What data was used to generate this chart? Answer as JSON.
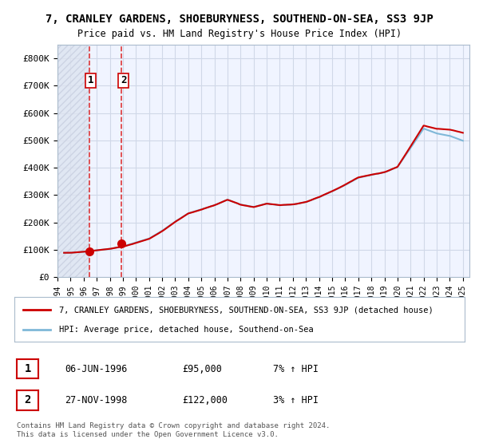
{
  "title": "7, CRANLEY GARDENS, SHOEBURYNESS, SOUTHEND-ON-SEA, SS3 9JP",
  "subtitle": "Price paid vs. HM Land Registry's House Price Index (HPI)",
  "legend_line1": "7, CRANLEY GARDENS, SHOEBURYNESS, SOUTHEND-ON-SEA, SS3 9JP (detached house)",
  "legend_line2": "HPI: Average price, detached house, Southend-on-Sea",
  "table_row1": [
    "1",
    "06-JUN-1996",
    "£95,000",
    "7% ↑ HPI"
  ],
  "table_row2": [
    "2",
    "27-NOV-1998",
    "£122,000",
    "3% ↑ HPI"
  ],
  "footnote": "Contains HM Land Registry data © Crown copyright and database right 2024.\nThis data is licensed under the Open Government Licence v3.0.",
  "xmin": 1994.0,
  "xmax": 2025.5,
  "ymin": 0,
  "ymax": 850000,
  "yticks": [
    0,
    100000,
    200000,
    300000,
    400000,
    500000,
    600000,
    700000,
    800000
  ],
  "ytick_labels": [
    "£0",
    "£100K",
    "£200K",
    "£300K",
    "£400K",
    "£500K",
    "£600K",
    "£700K",
    "£800K"
  ],
  "purchase1_x": 1996.44,
  "purchase1_y": 95000,
  "purchase2_x": 1998.9,
  "purchase2_y": 122000,
  "shading_xmin": 1994.0,
  "shading_xmax": 1996.44,
  "bg_color": "#f0f4ff",
  "hatch_color": "#c8cfe0",
  "grid_color": "#d0d8e8",
  "red_line_color": "#cc0000",
  "blue_line_color": "#7fb8d8",
  "dashed_red_color": "#dd2222",
  "purchase_dot_color": "#cc0000"
}
